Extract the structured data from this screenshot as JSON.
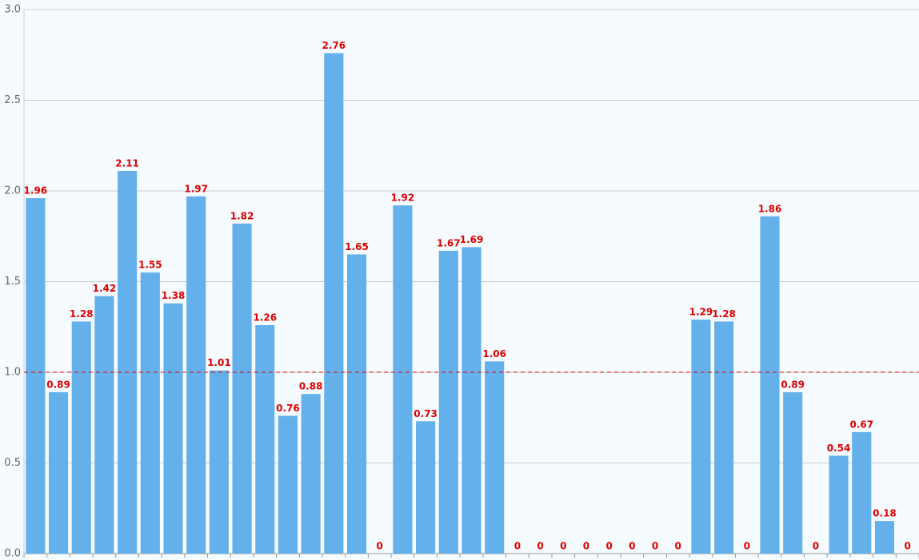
{
  "chart_data": {
    "type": "bar",
    "categories": [
      null,
      null,
      null,
      null,
      null,
      null,
      null,
      null,
      null,
      null,
      null,
      null,
      null,
      null,
      null,
      null,
      null,
      null,
      null,
      null,
      null,
      null,
      null,
      null,
      null,
      null,
      null,
      null,
      null,
      null,
      null,
      null,
      null,
      null,
      null,
      null,
      null,
      null,
      null
    ],
    "values": [
      1.96,
      0.89,
      1.28,
      1.42,
      2.11,
      1.55,
      1.38,
      1.97,
      1.01,
      1.82,
      1.26,
      0.76,
      0.88,
      2.76,
      1.65,
      0,
      1.92,
      0.73,
      1.67,
      1.69,
      1.06,
      0,
      0,
      0,
      0,
      0,
      0,
      0,
      0,
      1.29,
      1.28,
      0,
      1.86,
      0.89,
      0,
      0.54,
      0.67,
      0.18,
      0
    ],
    "color": "#63b0eb",
    "ylim": [
      0,
      3
    ],
    "yticks": [
      {
        "value": 0,
        "label": "0.0"
      },
      {
        "value": 0.5,
        "label": "0.5"
      },
      {
        "value": 1,
        "label": "1.0"
      },
      {
        "value": 1.5,
        "label": "1.5"
      },
      {
        "value": 2,
        "label": "2.0"
      },
      {
        "value": 2.5,
        "label": "2.5"
      },
      {
        "value": 3,
        "label": "3.0"
      }
    ],
    "grid": true,
    "reference_line": {
      "value": 1,
      "color": "#e00000"
    }
  }
}
